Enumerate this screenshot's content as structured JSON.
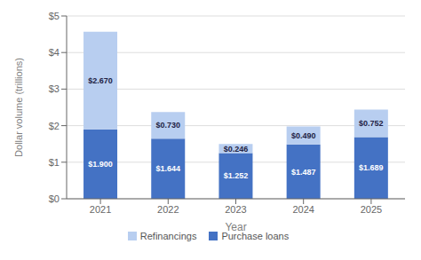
{
  "chart_data": {
    "type": "bar",
    "stacked": true,
    "categories": [
      "2021",
      "2022",
      "2023",
      "2024",
      "2025"
    ],
    "series": [
      {
        "name": "Purchase loans",
        "color": "#4472c4",
        "values": [
          1.9,
          1.644,
          1.252,
          1.487,
          1.689
        ],
        "value_labels": [
          "$1.900",
          "$1.644",
          "$1.252",
          "$1.487",
          "$1.689"
        ]
      },
      {
        "name": "Refinancings",
        "color": "#b8cef0",
        "values": [
          2.67,
          0.73,
          0.246,
          0.49,
          0.752
        ],
        "value_labels": [
          "$2.670",
          "$0.730",
          "$0.246",
          "$0.490",
          "$0.752"
        ]
      }
    ],
    "xlabel": "Year",
    "ylabel": "Dollar volume (trillions)",
    "ylim": [
      0,
      5
    ],
    "yticks": [
      {
        "value": 0,
        "label": "$0"
      },
      {
        "value": 1,
        "label": "$1"
      },
      {
        "value": 2,
        "label": "$2"
      },
      {
        "value": 3,
        "label": "$3"
      },
      {
        "value": 4,
        "label": "$4"
      },
      {
        "value": 5,
        "label": "$5"
      }
    ],
    "grid": true,
    "legend": "bottom",
    "data_labels": true
  }
}
